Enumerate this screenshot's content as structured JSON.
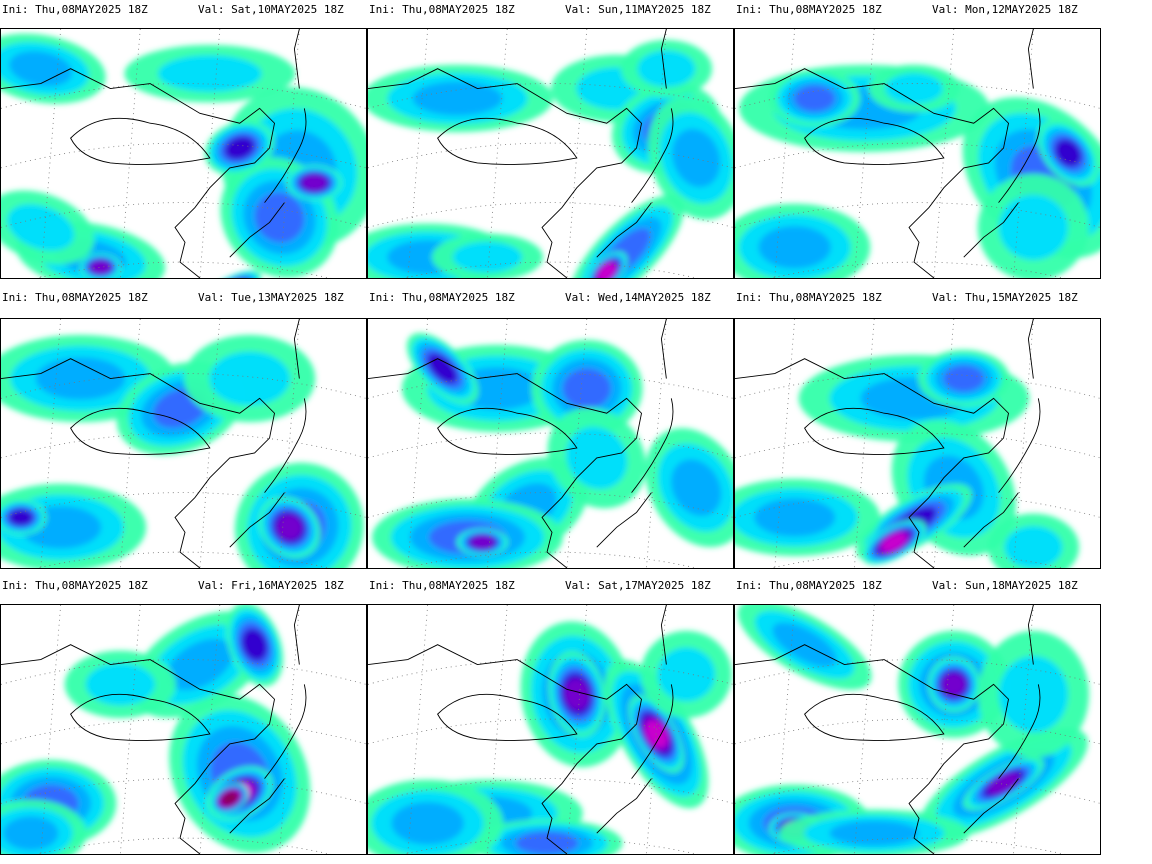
{
  "panels": [
    {
      "ini": "Ini: Thu,08MAY2025 18Z",
      "val": "Val: Sat,10MAY2025 18Z"
    },
    {
      "ini": "Ini: Thu,08MAY2025 18Z",
      "val": "Val: Sun,11MAY2025 18Z"
    },
    {
      "ini": "Ini: Thu,08MAY2025 18Z",
      "val": "Val: Mon,12MAY2025 18Z"
    },
    {
      "ini": "Ini: Thu,08MAY2025 18Z",
      "val": "Val: Tue,13MAY2025 18Z"
    },
    {
      "ini": "Ini: Thu,08MAY2025 18Z",
      "val": "Val: Wed,14MAY2025 18Z"
    },
    {
      "ini": "Ini: Thu,08MAY2025 18Z",
      "val": "Val: Thu,15MAY2025 18Z"
    },
    {
      "ini": "Ini: Thu,08MAY2025 18Z",
      "val": "Val: Fri,16MAY2025 18Z"
    },
    {
      "ini": "Ini: Thu,08MAY2025 18Z",
      "val": "Val: Sat,17MAY2025 18Z"
    },
    {
      "ini": "Ini: Thu,08MAY2025 18Z",
      "val": "Val: Sun,18MAY2025 18Z"
    }
  ],
  "colors": {
    "light": "#33ffaa",
    "cyan": "#00ddff",
    "sky": "#00aaff",
    "blue": "#3366ff",
    "deep": "#3300cc",
    "violet": "#7700cc",
    "magenta": "#cc00cc",
    "core": "#880055",
    "coast": "#000000"
  }
}
